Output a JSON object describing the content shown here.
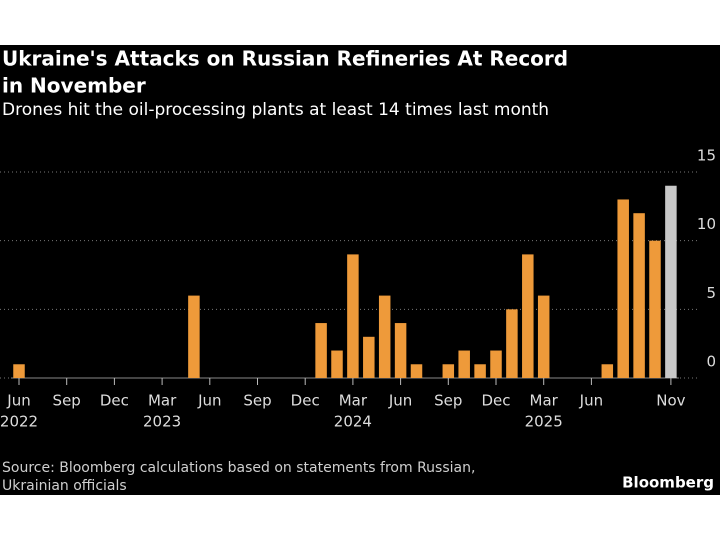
{
  "chart_data": {
    "type": "bar",
    "title": [
      "Ukraine's Attacks on Russian Refineries At Record",
      "in November"
    ],
    "subtitle": "Drones hit the oil-processing plants at least 14 times last month",
    "categories": [
      "Jun",
      null,
      null,
      "Sep",
      null,
      null,
      "Dec",
      null,
      null,
      "Mar",
      null,
      null,
      "Jun",
      null,
      null,
      "Sep",
      null,
      null,
      "Dec",
      null,
      null,
      "Mar",
      null,
      null,
      "Jun",
      null,
      null,
      "Sep",
      null,
      null,
      "Dec",
      null,
      null,
      "Mar",
      null,
      null,
      "Jun",
      null,
      null,
      null,
      null,
      "Nov"
    ],
    "category_years": [
      "2022",
      null,
      null,
      null,
      null,
      null,
      null,
      null,
      null,
      "2023",
      null,
      null,
      null,
      null,
      null,
      null,
      null,
      null,
      null,
      null,
      null,
      "2024",
      null,
      null,
      null,
      null,
      null,
      null,
      null,
      null,
      null,
      null,
      null,
      "2025",
      null,
      null,
      null,
      null,
      null,
      null,
      null,
      null
    ],
    "values": [
      1,
      0,
      0,
      0,
      0,
      0,
      0,
      0,
      0,
      0,
      0,
      6,
      0,
      0,
      0,
      0,
      0,
      0,
      0,
      4,
      2,
      9,
      3,
      6,
      4,
      1,
      0,
      1,
      2,
      1,
      2,
      5,
      9,
      6,
      0,
      0,
      0,
      1,
      13,
      12,
      10,
      14
    ],
    "bar_colors": [
      "#ee9a3a",
      "#ee9a3a",
      "#ee9a3a",
      "#ee9a3a",
      "#ee9a3a",
      "#ee9a3a",
      "#ee9a3a",
      "#ee9a3a",
      "#ee9a3a",
      "#ee9a3a",
      "#ee9a3a",
      "#ee9a3a",
      "#ee9a3a",
      "#ee9a3a",
      "#ee9a3a",
      "#ee9a3a",
      "#ee9a3a",
      "#ee9a3a",
      "#ee9a3a",
      "#ee9a3a",
      "#ee9a3a",
      "#ee9a3a",
      "#ee9a3a",
      "#ee9a3a",
      "#ee9a3a",
      "#ee9a3a",
      "#ee9a3a",
      "#ee9a3a",
      "#ee9a3a",
      "#ee9a3a",
      "#ee9a3a",
      "#ee9a3a",
      "#ee9a3a",
      "#ee9a3a",
      "#ee9a3a",
      "#ee9a3a",
      "#ee9a3a",
      "#ee9a3a",
      "#ee9a3a",
      "#ee9a3a",
      "#ee9a3a",
      "#c8c8c8"
    ],
    "ylim": [
      0,
      15
    ],
    "yticks": [
      0,
      5,
      10,
      15
    ],
    "grid": true,
    "source": [
      "Source: Bloomberg calculations based on statements from Russian,",
      "Ukrainian officials"
    ],
    "brand": "Bloomberg"
  }
}
